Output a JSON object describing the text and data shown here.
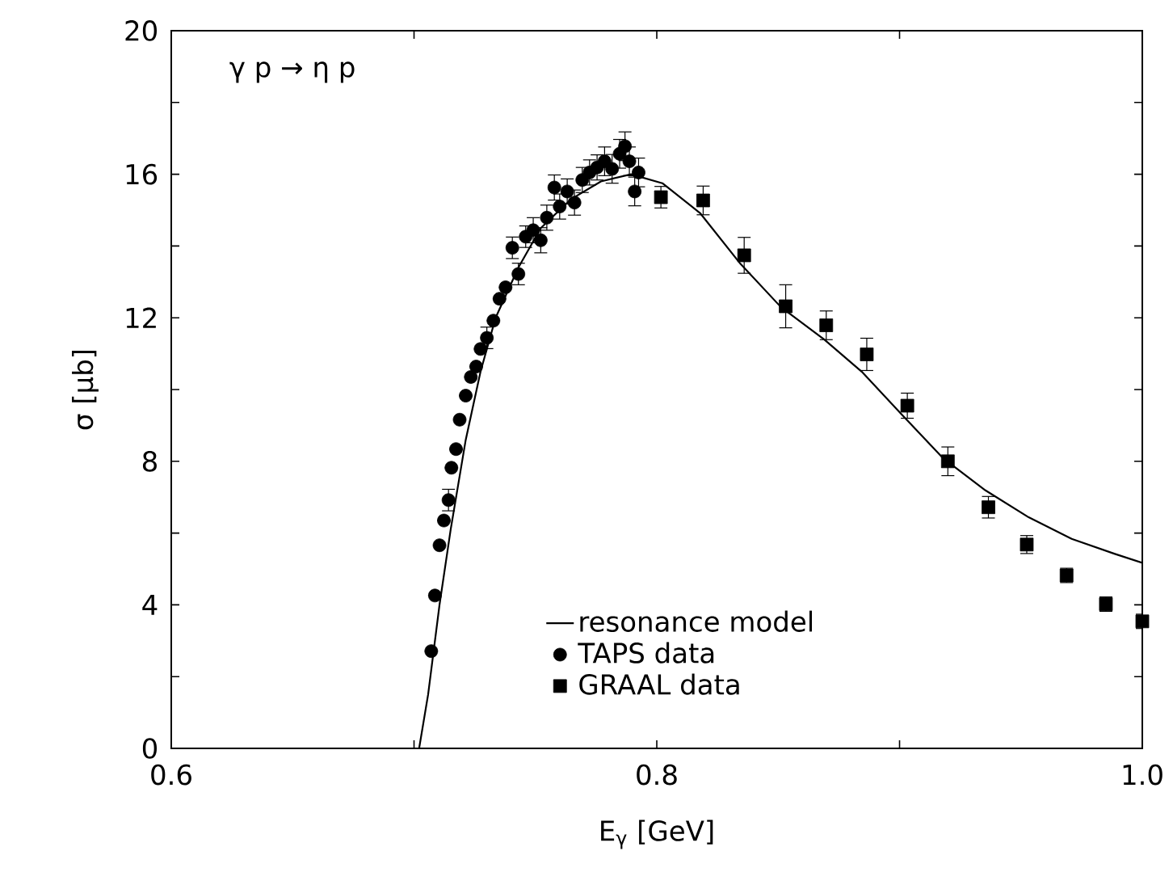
{
  "chart_data": {
    "type": "scatter",
    "xlabel": "E$_{γ}$ [GeV]",
    "ylabel": "σ [μb]",
    "annotations": [
      "γ p → η p"
    ],
    "xlim": [
      0.6,
      1.0
    ],
    "ylim": [
      0,
      20
    ],
    "xticks": [
      0.6,
      {
        "value": 0.7,
        "label": null
      },
      0.8,
      {
        "value": 0.9,
        "label": null
      },
      {
        "value": 1.0,
        "label": "1.0"
      }
    ],
    "yticks": [
      0,
      {
        "value": 2,
        "label": null
      },
      4,
      {
        "value": 6,
        "label": null
      },
      8,
      {
        "value": 10,
        "label": null
      },
      12,
      {
        "value": 14,
        "label": null
      },
      16,
      {
        "value": 18,
        "label": null
      },
      20
    ],
    "legend": "bottom right",
    "series": [
      {
        "name": "resonance model",
        "type": "line",
        "color": "#000000",
        "marker": "none",
        "line_style": "solid",
        "x": [
          0.7021,
          0.7058,
          0.7105,
          0.7151,
          0.7213,
          0.7274,
          0.7336,
          0.743,
          0.7522,
          0.7646,
          0.777,
          0.7894,
          0.8023,
          0.8178,
          0.8345,
          0.8511,
          0.8689,
          0.8844,
          0.9,
          0.9177,
          0.9354,
          0.9532,
          0.9709,
          0.9887,
          1.0
        ],
        "values": [
          0,
          1.5,
          4.0,
          6.1,
          8.6,
          10.5,
          12.0,
          13.4,
          14.5,
          15.3,
          15.8,
          16.0,
          15.75,
          14.92,
          13.5,
          12.3,
          11.4,
          10.5,
          9.37,
          8.1,
          7.19,
          6.44,
          5.84,
          5.42,
          5.17
        ]
      },
      {
        "name": "TAPS data",
        "type": "scatter",
        "color": "#000000",
        "marker": "circle",
        "x": [
          0.7071,
          0.7086,
          0.7105,
          0.7123,
          0.7142,
          0.7154,
          0.7173,
          0.7188,
          0.7213,
          0.7234,
          0.7256,
          0.7274,
          0.73,
          0.7327,
          0.7352,
          0.7377,
          0.7405,
          0.743,
          0.746,
          0.7491,
          0.7522,
          0.7547,
          0.7578,
          0.76,
          0.7631,
          0.7661,
          0.7693,
          0.7723,
          0.7754,
          0.7785,
          0.7816,
          0.7847,
          0.7869,
          0.7887,
          0.7909,
          0.7925
        ],
        "values": [
          2.71,
          4.26,
          5.66,
          6.35,
          6.92,
          7.82,
          8.34,
          9.16,
          9.83,
          10.35,
          10.64,
          11.13,
          11.44,
          11.92,
          12.53,
          12.85,
          13.95,
          13.22,
          14.26,
          14.44,
          14.16,
          14.79,
          15.63,
          15.1,
          15.52,
          15.21,
          15.84,
          16.05,
          16.19,
          16.36,
          16.15,
          16.57,
          16.78,
          16.36,
          15.52,
          16.05
        ],
        "errors": [
          null,
          null,
          null,
          null,
          0.3,
          null,
          null,
          null,
          null,
          null,
          null,
          null,
          0.3,
          null,
          null,
          null,
          0.3,
          0.3,
          0.3,
          0.35,
          0.35,
          0.35,
          0.35,
          0.35,
          0.35,
          0.35,
          0.35,
          0.35,
          0.35,
          0.4,
          0.4,
          0.4,
          0.4,
          0.4,
          0.4,
          0.4
        ]
      },
      {
        "name": "GRAAL data",
        "type": "scatter",
        "color": "#000000",
        "marker": "square",
        "x": [
          0.8017,
          0.8191,
          0.836,
          0.8531,
          0.8698,
          0.8865,
          0.9032,
          0.9199,
          0.9366,
          0.9524,
          0.9688,
          0.985,
          1.0
        ],
        "values": [
          15.36,
          15.27,
          13.74,
          12.32,
          11.79,
          10.98,
          9.55,
          8.0,
          6.72,
          5.68,
          4.82,
          4.02,
          3.54
        ],
        "errors": [
          0.3,
          0.4,
          0.5,
          0.6,
          0.4,
          0.45,
          0.35,
          0.4,
          0.3,
          0.25,
          0.2,
          0.2,
          0.2
        ]
      }
    ]
  }
}
